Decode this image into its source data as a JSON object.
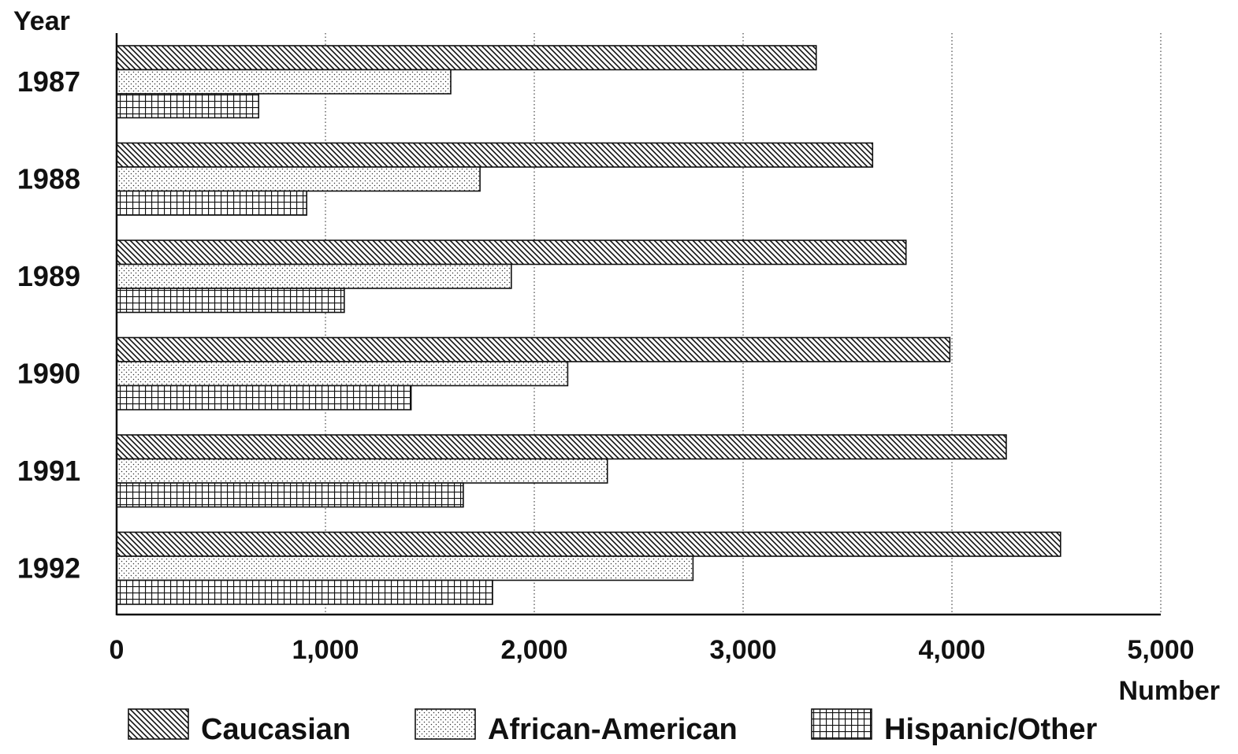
{
  "chart_data": {
    "type": "bar",
    "orientation": "horizontal",
    "ylabel": "Year",
    "xlabel": "Number",
    "categories": [
      "1987",
      "1988",
      "1989",
      "1990",
      "1991",
      "1992"
    ],
    "series": [
      {
        "name": "Caucasian",
        "pattern": "diagonal-hatch",
        "values": [
          3350,
          3620,
          3780,
          3990,
          4260,
          4520
        ]
      },
      {
        "name": "African-American",
        "pattern": "dots",
        "values": [
          1600,
          1740,
          1890,
          2160,
          2350,
          2760
        ]
      },
      {
        "name": "Hispanic/Other",
        "pattern": "grid",
        "values": [
          680,
          910,
          1090,
          1410,
          1660,
          1800
        ]
      }
    ],
    "xlim": [
      0,
      5000
    ],
    "xticks": [
      0,
      1000,
      2000,
      3000,
      4000,
      5000
    ],
    "xtick_labels": [
      "0",
      "1,000",
      "2,000",
      "3,000",
      "4,000",
      "5,000"
    ],
    "grid": "vertical dotted",
    "legend_position": "bottom",
    "colors": {
      "ink": "#111111",
      "background": "#ffffff"
    }
  }
}
